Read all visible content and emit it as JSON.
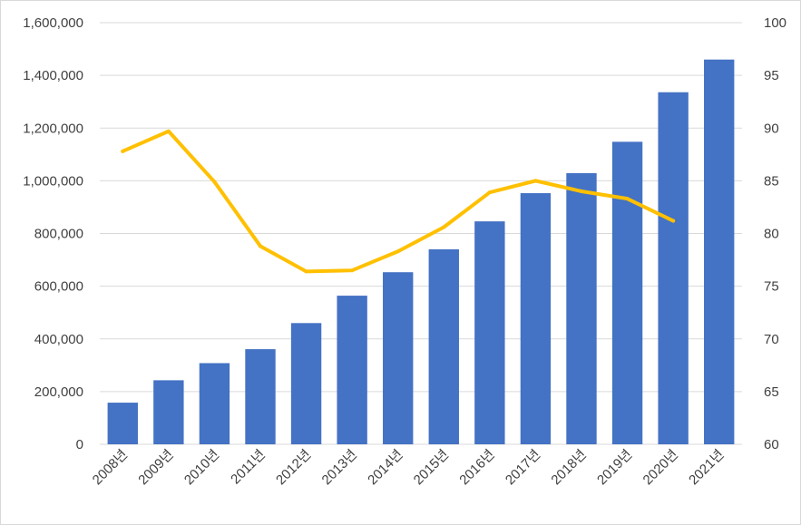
{
  "chart_data": {
    "type": "bar",
    "categories": [
      "2008년",
      "2009년",
      "2010년",
      "2011년",
      "2012년",
      "2013년",
      "2014년",
      "2015년",
      "2016년",
      "2017년",
      "2018년",
      "2019년",
      "2020년",
      "2021년"
    ],
    "series": [
      {
        "type": "bar",
        "axis": "left",
        "color": "#4472C4",
        "values": [
          158000,
          243000,
          308000,
          361000,
          460000,
          564000,
          653000,
          740000,
          846000,
          953000,
          1029000,
          1148000,
          1336000,
          1460000
        ]
      },
      {
        "type": "line",
        "axis": "right",
        "color": "#FFC000",
        "values": [
          87.8,
          89.7,
          84.9,
          78.8,
          76.4,
          76.5,
          78.3,
          80.6,
          83.9,
          85.0,
          84.0,
          83.3,
          81.2,
          null
        ]
      }
    ],
    "ylim": [
      0,
      1600000
    ],
    "y2lim": [
      60,
      100
    ],
    "y_ticks": [
      "0",
      "200,000",
      "400,000",
      "600,000",
      "800,000",
      "1,000,000",
      "1,200,000",
      "1,400,000",
      "1,600,000"
    ],
    "y2_ticks": [
      "60",
      "65",
      "70",
      "75",
      "80",
      "85",
      "90",
      "95",
      "100"
    ],
    "grid": true,
    "legend": "none"
  }
}
